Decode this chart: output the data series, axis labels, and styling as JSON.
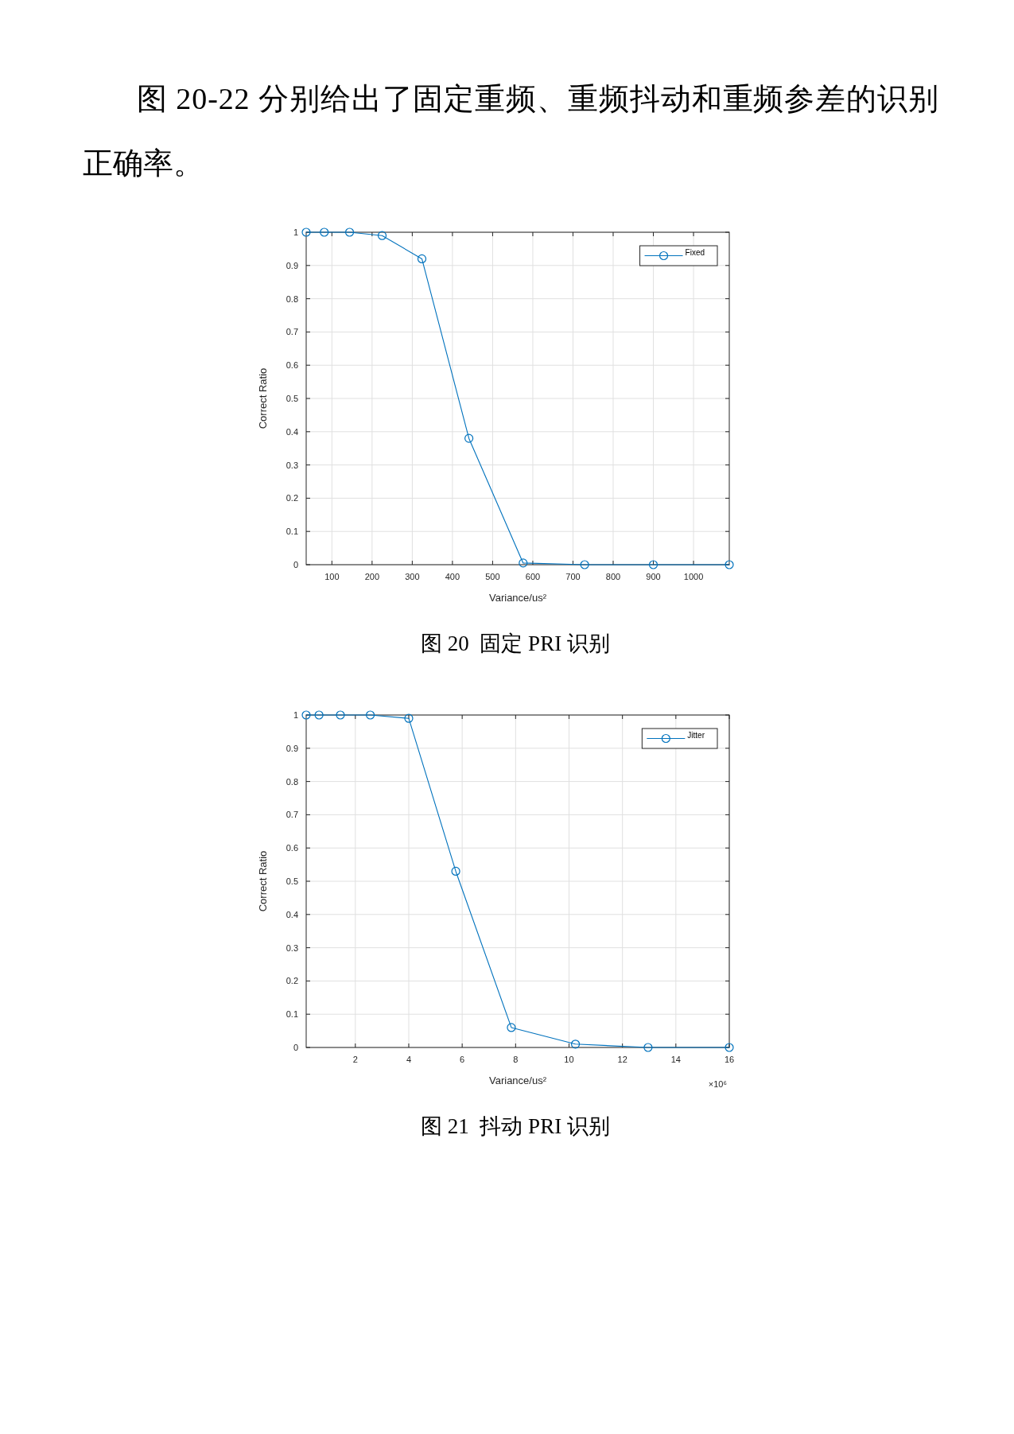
{
  "chart_data": [
    {
      "type": "line",
      "title": "图 20  固定 PRI 识别",
      "xlabel": "Variance/us²",
      "ylabel": "Correct Ratio",
      "annotations": [
        "图 20-22 分别给出了固定重频、重频抖动和重频参差的识别正确率。"
      ],
      "x": [
        36,
        81,
        144,
        225,
        324,
        441,
        576,
        729,
        900,
        1089
      ],
      "series": [
        {
          "name": "Fixed",
          "color": "#0072bd",
          "values": [
            1,
            1,
            1,
            0.99,
            0.92,
            0.38,
            0.005,
            0,
            0,
            0
          ]
        }
      ],
      "xlim": [
        36,
        1089
      ],
      "ylim": [
        0,
        1
      ],
      "xticks": [
        100,
        200,
        300,
        400,
        500,
        600,
        700,
        800,
        900,
        1000
      ],
      "yticks": [
        0,
        0.1,
        0.2,
        0.3,
        0.4,
        0.5,
        0.6,
        0.7,
        0.8,
        0.9,
        1
      ],
      "grid": true,
      "legend": "top right",
      "marker": "circle",
      "line_style": "solid"
    },
    {
      "type": "line",
      "title": "图 21  抖动 PRI 识别",
      "xlabel": "Variance/us²",
      "ylabel": "Correct Ratio",
      "annotations": [
        "×10⁶"
      ],
      "x": [
        0.16,
        0.64,
        1.44,
        2.56,
        4,
        5.76,
        7.84,
        10.24,
        12.96,
        16
      ],
      "series": [
        {
          "name": "Jitter",
          "color": "#0072bd",
          "values": [
            1,
            1,
            1,
            1,
            0.99,
            0.53,
            0.06,
            0.01,
            0,
            0
          ]
        }
      ],
      "xlim": [
        0.16,
        16
      ],
      "ylim": [
        0,
        1
      ],
      "xticks": [
        2,
        4,
        6,
        8,
        10,
        12,
        14,
        16
      ],
      "yticks": [
        0,
        0.1,
        0.2,
        0.3,
        0.4,
        0.5,
        0.6,
        0.7,
        0.8,
        0.9,
        1
      ],
      "grid": true,
      "legend": "top right",
      "marker": "circle",
      "line_style": "solid"
    }
  ]
}
